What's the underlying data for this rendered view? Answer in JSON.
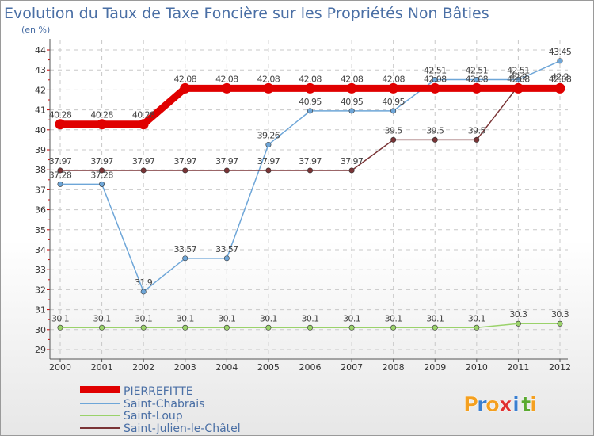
{
  "chart_data": {
    "type": "line",
    "title": "Evolution du Taux de Taxe Foncière sur les Propriétés Non Bâties",
    "ylabel": "(en %)",
    "xlabel": "",
    "ylim": [
      29,
      44
    ],
    "yticks": [
      "29",
      "30",
      "31",
      "32",
      "33",
      "34",
      "35",
      "36",
      "37",
      "38",
      "39",
      "40",
      "41",
      "42",
      "43",
      "44"
    ],
    "categories": [
      "2000",
      "2001",
      "2002",
      "2003",
      "2004",
      "2005",
      "2006",
      "2007",
      "2008",
      "2009",
      "2010",
      "2011",
      "2012"
    ],
    "grid": true,
    "legend_position": "bottom-left",
    "series": [
      {
        "name": "PIERREFITTE",
        "color": "#e00000",
        "values": [
          40.28,
          40.28,
          40.28,
          42.08,
          42.08,
          42.08,
          42.08,
          42.08,
          42.08,
          42.08,
          42.08,
          42.08,
          42.08
        ],
        "labels": [
          "40.28",
          "40.28",
          "40.28",
          "42.08",
          "42.08",
          "42.08",
          "42.08",
          "42.08",
          "42.08",
          "42.08",
          "42.08",
          "42.08",
          "42.08"
        ]
      },
      {
        "name": "Saint-Chabrais",
        "color": "#6ea6d8",
        "values": [
          37.28,
          37.28,
          31.9,
          33.57,
          33.57,
          39.26,
          40.95,
          40.95,
          40.95,
          42.51,
          42.51,
          42.51,
          43.45
        ],
        "labels": [
          "37.28",
          "37.28",
          "31.9",
          "33.57",
          "33.57",
          "39.26",
          "40.95",
          "40.95",
          "40.95",
          "42.51",
          "42.51",
          "42.51",
          "43.45"
        ]
      },
      {
        "name": "Saint-Loup",
        "color": "#9ad26a",
        "values": [
          30.1,
          30.1,
          30.1,
          30.1,
          30.1,
          30.1,
          30.1,
          30.1,
          30.1,
          30.1,
          30.1,
          30.3,
          30.3
        ],
        "labels": [
          "30.1",
          "30.1",
          "30.1",
          "30.1",
          "30.1",
          "30.1",
          "30.1",
          "30.1",
          "30.1",
          "30.1",
          "30.1",
          "30.3",
          "30.3"
        ]
      },
      {
        "name": "Saint-Julien-le-Châtel",
        "color": "#7a3436",
        "values": [
          37.97,
          37.97,
          37.97,
          37.97,
          37.97,
          37.97,
          37.97,
          37.97,
          39.5,
          39.5,
          39.5,
          42.2,
          42.2
        ],
        "labels": [
          "37.97",
          "37.97",
          "37.97",
          "37.97",
          "37.97",
          "37.97",
          "37.97",
          "37.97",
          "39.5",
          "39.5",
          "39.5",
          "42.2",
          "42.2"
        ]
      }
    ]
  },
  "brand": {
    "logo_letters": [
      "P",
      "r",
      "o",
      "x",
      "i",
      "t",
      "i"
    ],
    "logo_colors": [
      "#f4a020",
      "#3a7fd0",
      "#f4a020",
      "#e03030",
      "#3a7fd0",
      "#5aaa30",
      "#f4a020"
    ]
  }
}
